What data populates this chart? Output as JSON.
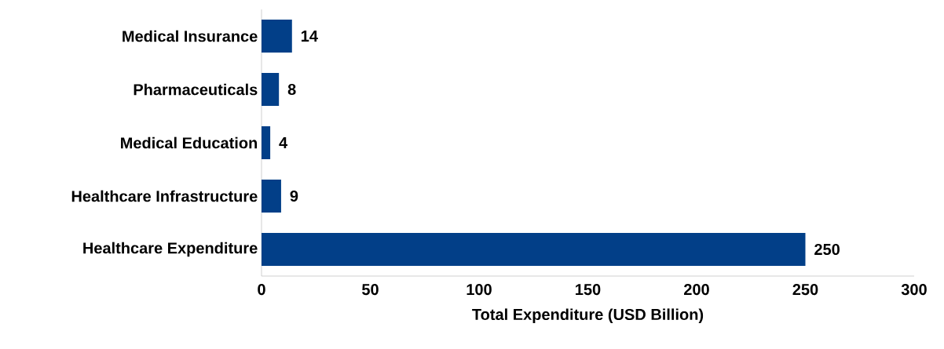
{
  "chart_data": {
    "type": "bar",
    "orientation": "horizontal",
    "xlabel": "Total Expenditure (USD Billion)",
    "categories": [
      "Medical Insurance",
      "Pharmaceuticals",
      "Medical Education",
      "Healthcare Infrastructure",
      "Healthcare Expenditure"
    ],
    "values": [
      14,
      8,
      4,
      9,
      250
    ],
    "color": "#023f88",
    "xlim": [
      0,
      300
    ],
    "xticks": [
      0,
      50,
      100,
      150,
      200,
      250,
      300
    ],
    "data_labels": true
  }
}
